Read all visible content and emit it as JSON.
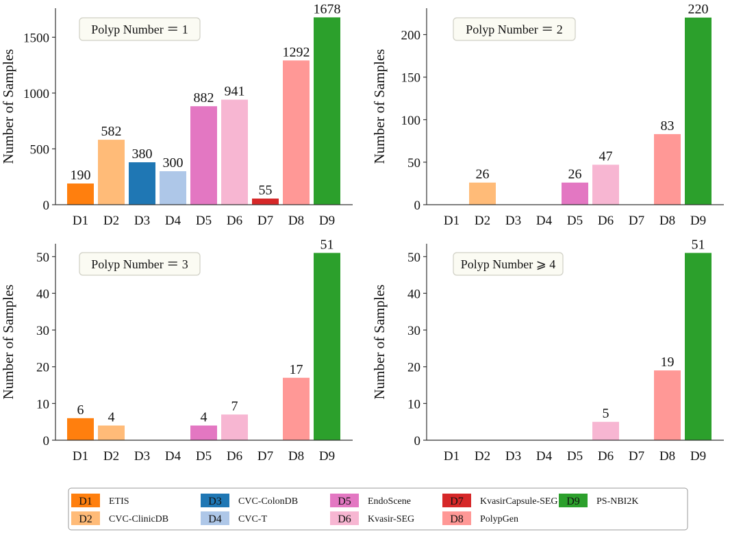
{
  "colors": {
    "D1": "#ff7f0e",
    "D2": "#ffbb78",
    "D3": "#1f77b4",
    "D4": "#aec7e8",
    "D5": "#e377c2",
    "D6": "#f7b6d2",
    "D7": "#d62728",
    "D8": "#ff9896",
    "D9": "#2ca02c"
  },
  "chart_data": [
    {
      "type": "bar",
      "annotation": "Polyp Number ＝ 1",
      "ylabel": "Number of Samples",
      "categories": [
        "D1",
        "D2",
        "D3",
        "D4",
        "D5",
        "D6",
        "D7",
        "D8",
        "D9"
      ],
      "values": [
        190,
        582,
        380,
        300,
        882,
        941,
        55,
        1292,
        1678
      ],
      "ylim": [
        0,
        1760
      ],
      "yticks": [
        0,
        500,
        1000,
        1500
      ]
    },
    {
      "type": "bar",
      "annotation": "Polyp Number ＝ 2",
      "ylabel": "Number of Samples",
      "categories": [
        "D1",
        "D2",
        "D3",
        "D4",
        "D5",
        "D6",
        "D7",
        "D8",
        "D9"
      ],
      "values": [
        0,
        26,
        0,
        0,
        26,
        47,
        0,
        83,
        220
      ],
      "ylim": [
        0,
        231
      ],
      "yticks": [
        0,
        50,
        100,
        150,
        200
      ]
    },
    {
      "type": "bar",
      "annotation": "Polyp Number ＝ 3",
      "ylabel": "Number of Samples",
      "categories": [
        "D1",
        "D2",
        "D3",
        "D4",
        "D5",
        "D6",
        "D7",
        "D8",
        "D9"
      ],
      "values": [
        6,
        4,
        0,
        0,
        4,
        7,
        0,
        17,
        51
      ],
      "ylim": [
        0,
        53.5
      ],
      "yticks": [
        0,
        10,
        20,
        30,
        40,
        50
      ]
    },
    {
      "type": "bar",
      "annotation": "Polyp Number ⩾ 4",
      "ylabel": "Number of Samples",
      "categories": [
        "D1",
        "D2",
        "D3",
        "D4",
        "D5",
        "D6",
        "D7",
        "D8",
        "D9"
      ],
      "values": [
        0,
        0,
        0,
        0,
        0,
        5,
        0,
        19,
        51
      ],
      "ylim": [
        0,
        53.5
      ],
      "yticks": [
        0,
        10,
        20,
        30,
        40,
        50
      ]
    }
  ],
  "legend": {
    "placement": "bottom",
    "entries": [
      {
        "key": "D1",
        "name": "ETIS"
      },
      {
        "key": "D2",
        "name": "CVC-ClinicDB"
      },
      {
        "key": "D3",
        "name": "CVC-ColonDB"
      },
      {
        "key": "D4",
        "name": "CVC-T"
      },
      {
        "key": "D5",
        "name": "EndoScene"
      },
      {
        "key": "D6",
        "name": "Kvasir-SEG"
      },
      {
        "key": "D7",
        "name": "KvasirCapsule-SEG"
      },
      {
        "key": "D8",
        "name": "PolypGen"
      },
      {
        "key": "D9",
        "name": "PS-NBI2K"
      }
    ]
  }
}
